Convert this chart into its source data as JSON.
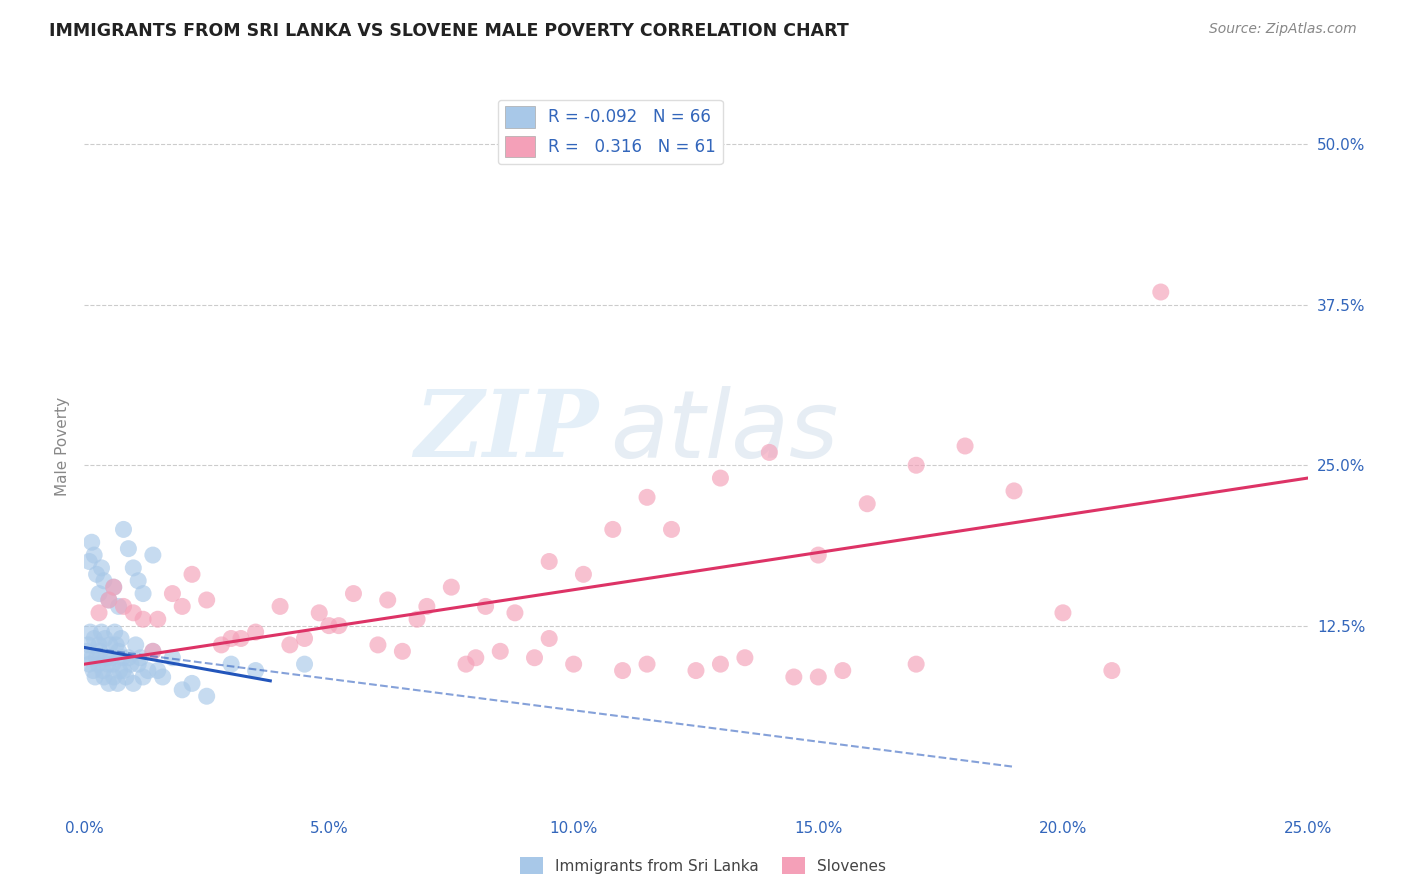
{
  "title": "IMMIGRANTS FROM SRI LANKA VS SLOVENE MALE POVERTY CORRELATION CHART",
  "source": "Source: ZipAtlas.com",
  "xlabel_ticks": [
    "0.0%",
    "5.0%",
    "10.0%",
    "15.0%",
    "20.0%",
    "25.0%"
  ],
  "xlabel_vals": [
    0.0,
    5.0,
    10.0,
    15.0,
    20.0,
    25.0
  ],
  "ylabel_ticks": [
    "12.5%",
    "25.0%",
    "37.5%",
    "50.0%"
  ],
  "ylabel_vals": [
    12.5,
    25.0,
    37.5,
    50.0
  ],
  "xlim": [
    0,
    25.0
  ],
  "ylim": [
    -2,
    55
  ],
  "R_blue": -0.092,
  "N_blue": 66,
  "R_pink": 0.316,
  "N_pink": 61,
  "blue_color": "#a8c8e8",
  "pink_color": "#f4a0b8",
  "blue_line_color": "#2255bb",
  "pink_line_color": "#dd3366",
  "legend_label_blue": "Immigrants from Sri Lanka",
  "legend_label_pink": "Slovenes",
  "watermark_zip": "ZIP",
  "watermark_atlas": "atlas",
  "blue_scatter_x": [
    0.05,
    0.08,
    0.1,
    0.12,
    0.15,
    0.18,
    0.2,
    0.22,
    0.25,
    0.28,
    0.3,
    0.32,
    0.35,
    0.38,
    0.4,
    0.42,
    0.45,
    0.48,
    0.5,
    0.52,
    0.55,
    0.58,
    0.6,
    0.62,
    0.65,
    0.68,
    0.7,
    0.72,
    0.75,
    0.78,
    0.8,
    0.85,
    0.9,
    0.95,
    1.0,
    1.05,
    1.1,
    1.15,
    1.2,
    1.3,
    1.4,
    1.5,
    1.6,
    1.8,
    2.0,
    2.2,
    2.5,
    3.0,
    3.5,
    4.5,
    0.1,
    0.15,
    0.2,
    0.25,
    0.3,
    0.35,
    0.4,
    0.5,
    0.6,
    0.7,
    0.8,
    0.9,
    1.0,
    1.1,
    1.2,
    1.4
  ],
  "blue_scatter_y": [
    10.5,
    11.0,
    9.5,
    12.0,
    10.0,
    9.0,
    11.5,
    8.5,
    10.0,
    9.5,
    11.0,
    10.5,
    12.0,
    9.0,
    8.5,
    11.5,
    10.0,
    9.5,
    8.0,
    11.0,
    10.0,
    9.5,
    8.5,
    12.0,
    11.0,
    8.0,
    10.5,
    9.0,
    11.5,
    10.0,
    9.0,
    8.5,
    10.0,
    9.5,
    8.0,
    11.0,
    9.5,
    10.0,
    8.5,
    9.0,
    10.5,
    9.0,
    8.5,
    10.0,
    7.5,
    8.0,
    7.0,
    9.5,
    9.0,
    9.5,
    17.5,
    19.0,
    18.0,
    16.5,
    15.0,
    17.0,
    16.0,
    14.5,
    15.5,
    14.0,
    20.0,
    18.5,
    17.0,
    16.0,
    15.0,
    18.0
  ],
  "pink_scatter_x": [
    0.3,
    0.8,
    1.2,
    1.8,
    2.5,
    3.2,
    4.0,
    4.8,
    5.5,
    6.2,
    6.8,
    7.5,
    8.2,
    8.8,
    9.5,
    10.2,
    10.8,
    11.5,
    12.0,
    13.0,
    14.0,
    15.0,
    16.0,
    17.0,
    18.0,
    19.0,
    20.0,
    21.0,
    22.0,
    0.5,
    1.0,
    1.5,
    2.0,
    2.8,
    3.5,
    4.5,
    5.2,
    6.0,
    7.0,
    7.8,
    8.5,
    9.2,
    10.0,
    11.0,
    12.5,
    13.5,
    14.5,
    15.5,
    0.6,
    1.4,
    2.2,
    3.0,
    4.2,
    5.0,
    6.5,
    8.0,
    9.5,
    11.5,
    13.0,
    15.0,
    17.0
  ],
  "pink_scatter_y": [
    13.5,
    14.0,
    13.0,
    15.0,
    14.5,
    11.5,
    14.0,
    13.5,
    15.0,
    14.5,
    13.0,
    15.5,
    14.0,
    13.5,
    17.5,
    16.5,
    20.0,
    22.5,
    20.0,
    24.0,
    26.0,
    18.0,
    22.0,
    25.0,
    26.5,
    23.0,
    13.5,
    9.0,
    38.5,
    14.5,
    13.5,
    13.0,
    14.0,
    11.0,
    12.0,
    11.5,
    12.5,
    11.0,
    14.0,
    9.5,
    10.5,
    10.0,
    9.5,
    9.0,
    9.0,
    10.0,
    8.5,
    9.0,
    15.5,
    10.5,
    16.5,
    11.5,
    11.0,
    12.5,
    10.5,
    10.0,
    11.5,
    9.5,
    9.5,
    8.5,
    9.5
  ],
  "blue_line_x0": 0.0,
  "blue_line_x1": 3.8,
  "blue_line_y0": 10.8,
  "blue_line_y1": 8.2,
  "blue_dash_x0": 0.0,
  "blue_dash_x1": 19.0,
  "blue_dash_y0": 10.8,
  "blue_dash_y1": 1.5,
  "pink_line_x0": 0.0,
  "pink_line_x1": 25.0,
  "pink_line_y0": 9.5,
  "pink_line_y1": 24.0
}
